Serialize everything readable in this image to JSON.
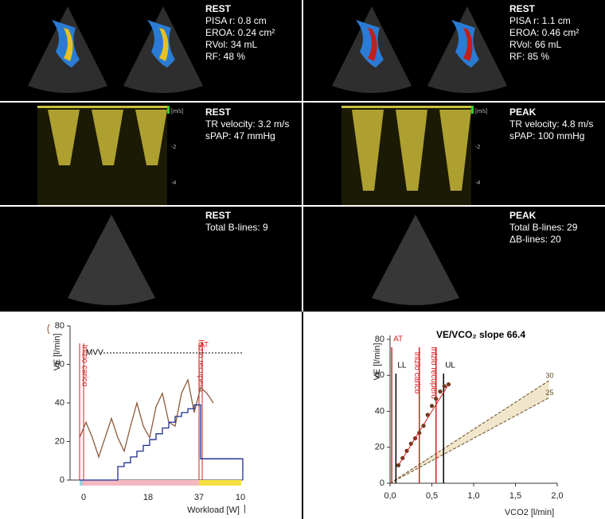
{
  "panels": [
    {
      "lines": [
        "REST",
        "PISA r: 0.8 cm",
        "EROA: 0.24 cm²",
        "RVol: 34 mL",
        "RF: 48 %"
      ]
    },
    {
      "lines": [
        "REST",
        "PISA r: 1.1 cm",
        "EROA: 0.46 cm²",
        "RVol: 66 mL",
        "RF: 85 %"
      ]
    },
    {
      "lines": [
        "REST",
        "TR velocity: 3.2 m/s",
        "sPAP: 47 mmHg"
      ],
      "scale": [
        "[m/s]",
        "-2",
        "-4"
      ]
    },
    {
      "lines": [
        "PEAK",
        "TR velocity: 4.8 m/s",
        "sPAP: 100 mmHg"
      ],
      "scale": [
        "[m/s]",
        "-2",
        "-4"
      ]
    },
    {
      "lines": [
        "REST",
        "Total B-lines: 9"
      ]
    },
    {
      "lines": [
        "PEAK",
        "Total B-lines: 29",
        "ΔB-lines: 20"
      ]
    }
  ],
  "chart_data": [
    {
      "type": "line",
      "y_label": "VE [l/min]",
      "x_label": "Workload [W]",
      "x_label_suffix": "|",
      "ylim": [
        0,
        80
      ],
      "yticks": [
        0,
        20,
        40,
        60,
        80
      ],
      "x_labels": [
        "0",
        "18",
        "37",
        "10"
      ],
      "series": [
        {
          "color": "#8b5a3c",
          "values": [
            22,
            30,
            22,
            12,
            22,
            32,
            22,
            15,
            28,
            40,
            28,
            22,
            38,
            45,
            30,
            28,
            45,
            52,
            35,
            48,
            45,
            40,
            null,
            null,
            null,
            null
          ]
        },
        {
          "color": "#1f2f8f",
          "step": true,
          "values": [
            0,
            0,
            0,
            0,
            0,
            0,
            7,
            9,
            12,
            15,
            18,
            21,
            24,
            27,
            30,
            33,
            35,
            37,
            39,
            11,
            11,
            11,
            11,
            11,
            11,
            11
          ]
        }
      ],
      "mvv": {
        "label": "MVV",
        "value": 66
      },
      "markers": [
        "Inizio carico",
        "Inizio recupero",
        "AT"
      ]
    },
    {
      "type": "scatter",
      "title": "VE/VCO₂ slope 66.4",
      "y_label": "VE [l/min]",
      "x_label": "VCO2 [l/min]",
      "xlim": [
        0,
        2
      ],
      "xticks": [
        {
          "value": 0,
          "label": "0,0"
        },
        {
          "value": 0.5,
          "label": "0,5"
        },
        {
          "value": 1,
          "label": "1,0"
        },
        {
          "value": 1.5,
          "label": "1,5"
        },
        {
          "value": 2,
          "label": "2,0"
        }
      ],
      "ylim": [
        0,
        80
      ],
      "yticks": [
        0,
        20,
        40,
        60,
        80
      ],
      "color": "#6b3a1f",
      "x": [
        0.1,
        0.15,
        0.2,
        0.25,
        0.3,
        0.35,
        0.4,
        0.45,
        0.5,
        0.55,
        0.6,
        0.65,
        0.7
      ],
      "y": [
        10,
        14,
        18,
        22,
        25,
        28,
        32,
        38,
        43,
        47,
        51,
        54,
        55
      ],
      "slopes": [
        {
          "value": 30,
          "label": "30"
        },
        {
          "value": 25,
          "label": "25"
        }
      ],
      "vlines": [
        {
          "x": 0.02,
          "label": "AT",
          "color": "#d42020"
        },
        {
          "x": 0.07,
          "label": "LL",
          "color": "#000000"
        },
        {
          "x": 0.35,
          "label": "Inizio carico",
          "color": "#d42020"
        },
        {
          "x": 0.55,
          "label": "Inizio recupero",
          "color": "#d42020"
        },
        {
          "x": 0.64,
          "label": "UL",
          "color": "#000000"
        }
      ]
    }
  ]
}
